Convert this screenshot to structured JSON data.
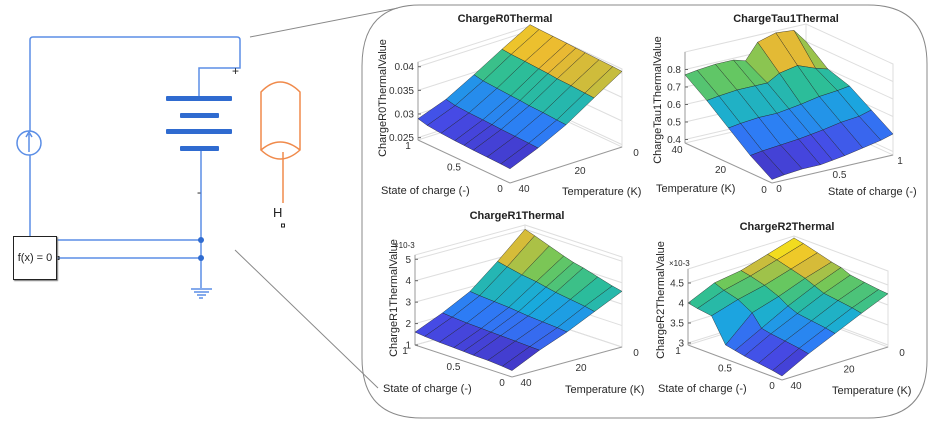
{
  "diagram": {
    "function_block": "f(x) = 0",
    "battery_plus": "+",
    "battery_minus": "-",
    "thermal_port": "H",
    "wire_color": "#5b8ee6",
    "battery_color": "#2f6bd0",
    "thermal_color": "#f08a4b"
  },
  "chart_data": [
    {
      "type": "surface",
      "title": "ChargeR0Thermal",
      "zlabel": "ChargeR0ThermalValue",
      "xlabel": "Temperature (K)",
      "ylabel": "State of charge (-)",
      "z_exponent": "",
      "temperature": [
        0,
        10,
        20,
        30,
        40
      ],
      "soc": [
        0,
        0.1,
        0.25,
        0.4,
        0.5,
        0.6,
        0.75,
        0.9,
        1
      ],
      "z": [
        [
          0.0405,
          0.0406,
          0.0407,
          0.0408,
          0.0409,
          0.041,
          0.0411,
          0.0412,
          0.0413
        ],
        [
          0.0368,
          0.0369,
          0.0371,
          0.0372,
          0.0374,
          0.0375,
          0.0377,
          0.0378,
          0.038
        ],
        [
          0.033,
          0.0331,
          0.0333,
          0.0334,
          0.0336,
          0.0337,
          0.0339,
          0.0341,
          0.0345
        ],
        [
          0.03,
          0.0301,
          0.0302,
          0.0303,
          0.0304,
          0.0305,
          0.0306,
          0.0308,
          0.0312
        ],
        [
          0.0275,
          0.0276,
          0.0277,
          0.0278,
          0.0279,
          0.028,
          0.0282,
          0.0285,
          0.029
        ]
      ],
      "zlim": [
        0.0245,
        0.041
      ],
      "ztick_labels": [
        "0.025",
        "0.03",
        "0.035",
        "0.04"
      ],
      "ztick_values": [
        0.025,
        0.03,
        0.035,
        0.04
      ],
      "xtick_labels": [
        "0",
        "20",
        "40"
      ],
      "ytick_labels": [
        "0",
        "0.5",
        "1"
      ],
      "colormap": "parula"
    },
    {
      "type": "surface",
      "title": "ChargeTau1Thermal",
      "zlabel": "ChargeTau1ThermalValue",
      "xlabel": "Temperature (K)",
      "ylabel": "State of charge (-)",
      "z_exponent": "",
      "temperature": [
        0,
        10,
        20,
        30,
        40
      ],
      "soc": [
        0,
        0.1,
        0.25,
        0.4,
        0.5,
        0.6,
        0.75,
        0.9,
        1
      ],
      "z": [
        [
          0.4,
          0.41,
          0.42,
          0.42,
          0.43,
          0.44,
          0.46,
          0.48,
          0.5
        ],
        [
          0.48,
          0.49,
          0.5,
          0.51,
          0.52,
          0.53,
          0.55,
          0.56,
          0.58
        ],
        [
          0.58,
          0.59,
          0.6,
          0.6,
          0.61,
          0.62,
          0.64,
          0.65,
          0.66
        ],
        [
          0.68,
          0.69,
          0.7,
          0.7,
          0.7,
          0.74,
          0.76,
          0.72,
          0.7
        ],
        [
          0.77,
          0.78,
          0.79,
          0.79,
          0.77,
          0.86,
          0.89,
          0.88,
          0.8
        ]
      ],
      "zlim": [
        0.38,
        0.9
      ],
      "ztick_labels": [
        "0.4",
        "0.5",
        "0.6",
        "0.7",
        "0.8"
      ],
      "ztick_values": [
        0.4,
        0.5,
        0.6,
        0.7,
        0.8
      ],
      "xtick_labels": [
        "0",
        "20",
        "40"
      ],
      "ytick_labels": [
        "0",
        "0.5",
        "1"
      ],
      "colormap": "parula"
    },
    {
      "type": "surface",
      "title": "ChargeR1Thermal",
      "zlabel": "ChargeR1ThermalValue",
      "xlabel": "Temperature (K)",
      "ylabel": "State of charge (-)",
      "z_exponent": "×10-3",
      "temperature": [
        0,
        10,
        20,
        30,
        40
      ],
      "soc": [
        0,
        0.1,
        0.25,
        0.4,
        0.5,
        0.6,
        0.75,
        0.9,
        1
      ],
      "z": [
        [
          3.6,
          3.7,
          3.9,
          4.1,
          4.2,
          4.35,
          4.6,
          4.85,
          5.0
        ],
        [
          3.0,
          3.1,
          3.2,
          3.3,
          3.4,
          3.5,
          3.6,
          3.75,
          3.85
        ],
        [
          2.4,
          2.45,
          2.5,
          2.55,
          2.6,
          2.65,
          2.7,
          2.75,
          2.8
        ],
        [
          1.9,
          1.92,
          1.95,
          1.98,
          2.0,
          2.02,
          2.05,
          2.1,
          2.15
        ],
        [
          1.3,
          1.35,
          1.4,
          1.42,
          1.45,
          1.47,
          1.5,
          1.55,
          1.6
        ]
      ],
      "zlim": [
        1,
        5.2
      ],
      "ztick_labels": [
        "1",
        "2",
        "3",
        "4",
        "5"
      ],
      "ztick_values": [
        1,
        2,
        3,
        4,
        5
      ],
      "xtick_labels": [
        "0",
        "20",
        "40"
      ],
      "ytick_labels": [
        "0",
        "0.5",
        "1"
      ],
      "colormap": "parula"
    },
    {
      "type": "surface",
      "title": "ChargeR2Thermal",
      "zlabel": "ChargeR2ThermalValue",
      "xlabel": "Temperature (K)",
      "ylabel": "State of charge (-)",
      "z_exponent": "×10-3",
      "temperature": [
        0,
        10,
        20,
        30,
        40
      ],
      "soc": [
        0,
        0.1,
        0.25,
        0.4,
        0.5,
        0.6,
        0.75,
        0.9,
        1
      ],
      "z": [
        [
          4.28,
          4.3,
          4.35,
          4.4,
          4.5,
          4.55,
          4.65,
          4.75,
          4.8
        ],
        [
          4.0,
          4.05,
          4.1,
          4.15,
          4.25,
          4.35,
          4.45,
          4.55,
          4.6
        ],
        [
          3.7,
          3.75,
          3.8,
          3.85,
          3.95,
          4.1,
          4.25,
          4.35,
          4.4
        ],
        [
          3.4,
          3.45,
          3.5,
          3.55,
          3.6,
          3.9,
          4.1,
          4.2,
          4.3
        ],
        [
          3.05,
          3.1,
          3.15,
          3.2,
          3.25,
          3.3,
          3.9,
          3.95,
          4.0
        ]
      ],
      "zlim": [
        2.95,
        4.85
      ],
      "ztick_labels": [
        "3",
        "3.5",
        "4",
        "4.5"
      ],
      "ztick_values": [
        3,
        3.5,
        4,
        4.5
      ],
      "xtick_labels": [
        "0",
        "20",
        "40"
      ],
      "ytick_labels": [
        "0",
        "0.5",
        "1"
      ],
      "colormap": "parula"
    }
  ]
}
